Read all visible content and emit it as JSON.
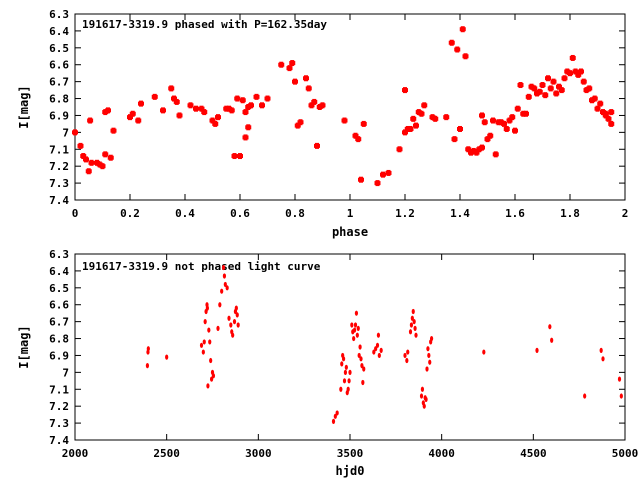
{
  "chart_data": [
    {
      "type": "scatter",
      "title": "191617-3319.9 phased with P=162.35day",
      "xlabel": "phase",
      "ylabel": "I[mag]",
      "xlim": [
        0,
        2
      ],
      "ylim": [
        7.4,
        6.3
      ],
      "x_ticks": [
        0,
        0.2,
        0.4,
        0.6,
        0.8,
        1,
        1.2,
        1.4,
        1.6,
        1.8,
        2
      ],
      "x_tick_labels": [
        "0",
        "0.2",
        "0.4",
        "0.6",
        "0.8",
        "1",
        "1.2",
        "1.4",
        "1.6",
        "1.8",
        "2"
      ],
      "y_ticks": [
        6.3,
        6.4,
        6.5,
        6.6,
        6.7,
        6.8,
        6.9,
        7.0,
        7.1,
        7.2,
        7.3,
        7.4
      ],
      "y_tick_labels": [
        "6.3",
        "6.4",
        "6.5",
        "6.6",
        "6.7",
        "6.8",
        "6.9",
        "7",
        "7.1",
        "7.2",
        "7.3",
        "7.4"
      ],
      "marker_color": "#ff0000",
      "marker": "cross-blob",
      "points": [
        [
          0.0,
          7.0
        ],
        [
          0.02,
          7.08
        ],
        [
          0.03,
          7.14
        ],
        [
          0.04,
          7.16
        ],
        [
          0.05,
          7.23
        ],
        [
          0.055,
          6.93
        ],
        [
          0.06,
          7.18
        ],
        [
          0.08,
          7.18
        ],
        [
          0.09,
          7.19
        ],
        [
          0.1,
          7.2
        ],
        [
          0.11,
          6.88
        ],
        [
          0.12,
          6.87
        ],
        [
          0.11,
          7.13
        ],
        [
          0.13,
          7.15
        ],
        [
          0.14,
          6.99
        ],
        [
          0.2,
          6.91
        ],
        [
          0.21,
          6.89
        ],
        [
          0.23,
          6.93
        ],
        [
          0.24,
          6.83
        ],
        [
          0.29,
          6.79
        ],
        [
          0.32,
          6.87
        ],
        [
          0.35,
          6.74
        ],
        [
          0.36,
          6.8
        ],
        [
          0.37,
          6.82
        ],
        [
          0.38,
          6.9
        ],
        [
          0.42,
          6.84
        ],
        [
          0.44,
          6.86
        ],
        [
          0.46,
          6.86
        ],
        [
          0.47,
          6.88
        ],
        [
          0.5,
          6.93
        ],
        [
          0.51,
          6.95
        ],
        [
          0.52,
          6.91
        ],
        [
          0.55,
          6.86
        ],
        [
          0.56,
          6.86
        ],
        [
          0.57,
          6.87
        ],
        [
          0.58,
          7.14
        ],
        [
          0.59,
          6.8
        ],
        [
          0.6,
          7.14
        ],
        [
          0.61,
          6.81
        ],
        [
          0.62,
          6.88
        ],
        [
          0.63,
          6.85
        ],
        [
          0.64,
          6.84
        ],
        [
          0.62,
          7.03
        ],
        [
          0.63,
          6.97
        ],
        [
          0.66,
          6.79
        ],
        [
          0.68,
          6.84
        ],
        [
          0.7,
          6.8
        ],
        [
          0.75,
          6.6
        ],
        [
          0.78,
          6.62
        ],
        [
          0.79,
          6.59
        ],
        [
          0.8,
          6.7
        ],
        [
          0.81,
          6.96
        ],
        [
          0.82,
          6.94
        ],
        [
          0.84,
          6.68
        ],
        [
          0.85,
          6.74
        ],
        [
          0.86,
          6.84
        ],
        [
          0.87,
          6.82
        ],
        [
          0.88,
          7.08
        ],
        [
          0.89,
          6.85
        ],
        [
          0.9,
          6.84
        ],
        [
          0.98,
          6.93
        ],
        [
          1.02,
          7.02
        ],
        [
          1.03,
          7.04
        ],
        [
          1.04,
          7.28
        ],
        [
          1.05,
          6.95
        ],
        [
          1.1,
          7.3
        ],
        [
          1.12,
          7.25
        ],
        [
          1.14,
          7.24
        ],
        [
          1.18,
          7.1
        ],
        [
          1.2,
          6.75
        ],
        [
          1.2,
          7.0
        ],
        [
          1.21,
          6.98
        ],
        [
          1.22,
          6.98
        ],
        [
          1.23,
          6.92
        ],
        [
          1.24,
          6.96
        ],
        [
          1.25,
          6.88
        ],
        [
          1.26,
          6.89
        ],
        [
          1.27,
          6.84
        ],
        [
          1.3,
          6.91
        ],
        [
          1.31,
          6.92
        ],
        [
          1.35,
          6.91
        ],
        [
          1.37,
          6.47
        ],
        [
          1.38,
          7.04
        ],
        [
          1.39,
          6.51
        ],
        [
          1.4,
          6.98
        ],
        [
          1.41,
          6.39
        ],
        [
          1.42,
          6.55
        ],
        [
          1.43,
          7.1
        ],
        [
          1.44,
          7.12
        ],
        [
          1.45,
          7.11
        ],
        [
          1.46,
          7.12
        ],
        [
          1.47,
          7.1
        ],
        [
          1.48,
          7.09
        ],
        [
          1.48,
          6.9
        ],
        [
          1.49,
          6.94
        ],
        [
          1.5,
          7.04
        ],
        [
          1.51,
          7.02
        ],
        [
          1.52,
          6.93
        ],
        [
          1.53,
          7.13
        ],
        [
          1.54,
          6.94
        ],
        [
          1.55,
          6.94
        ],
        [
          1.56,
          6.95
        ],
        [
          1.57,
          6.98
        ],
        [
          1.58,
          6.93
        ],
        [
          1.59,
          6.91
        ],
        [
          1.6,
          6.99
        ],
        [
          1.61,
          6.86
        ],
        [
          1.62,
          6.72
        ],
        [
          1.63,
          6.89
        ],
        [
          1.64,
          6.89
        ],
        [
          1.65,
          6.79
        ],
        [
          1.66,
          6.73
        ],
        [
          1.67,
          6.74
        ],
        [
          1.68,
          6.77
        ],
        [
          1.69,
          6.76
        ],
        [
          1.7,
          6.72
        ],
        [
          1.71,
          6.78
        ],
        [
          1.72,
          6.68
        ],
        [
          1.73,
          6.74
        ],
        [
          1.74,
          6.7
        ],
        [
          1.75,
          6.77
        ],
        [
          1.76,
          6.73
        ],
        [
          1.77,
          6.75
        ],
        [
          1.78,
          6.68
        ],
        [
          1.79,
          6.64
        ],
        [
          1.8,
          6.65
        ],
        [
          1.81,
          6.56
        ],
        [
          1.82,
          6.64
        ],
        [
          1.83,
          6.66
        ],
        [
          1.84,
          6.64
        ],
        [
          1.85,
          6.7
        ],
        [
          1.86,
          6.75
        ],
        [
          1.87,
          6.74
        ],
        [
          1.88,
          6.81
        ],
        [
          1.89,
          6.8
        ],
        [
          1.9,
          6.86
        ],
        [
          1.91,
          6.83
        ],
        [
          1.92,
          6.88
        ],
        [
          1.93,
          6.9
        ],
        [
          1.94,
          6.92
        ],
        [
          1.95,
          6.95
        ],
        [
          1.95,
          6.88
        ],
        [
          1.93,
          6.89
        ]
      ]
    },
    {
      "type": "scatter",
      "title": "191617-3319.9 not phased light curve",
      "xlabel": "hjd0",
      "ylabel": "I[mag]",
      "xlim": [
        2000,
        5000
      ],
      "ylim": [
        7.4,
        6.3
      ],
      "x_ticks": [
        2000,
        2500,
        3000,
        3500,
        4000,
        4500,
        5000
      ],
      "x_tick_labels": [
        "2000",
        "2500",
        "3000",
        "3500",
        "4000",
        "4500",
        "5000"
      ],
      "y_ticks": [
        6.3,
        6.4,
        6.5,
        6.6,
        6.7,
        6.8,
        6.9,
        7.0,
        7.1,
        7.2,
        7.3,
        7.4
      ],
      "y_tick_labels": [
        "6.3",
        "6.4",
        "6.5",
        "6.6",
        "6.7",
        "6.8",
        "6.9",
        "7",
        "7.1",
        "7.2",
        "7.3",
        "7.4"
      ],
      "marker_color": "#ff0000",
      "marker": "dot",
      "points": [
        [
          2395,
          6.96
        ],
        [
          2398,
          6.88
        ],
        [
          2400,
          6.86
        ],
        [
          2500,
          6.91
        ],
        [
          2690,
          6.84
        ],
        [
          2700,
          6.88
        ],
        [
          2705,
          6.82
        ],
        [
          2710,
          6.7
        ],
        [
          2715,
          6.64
        ],
        [
          2720,
          6.6
        ],
        [
          2722,
          6.62
        ],
        [
          2725,
          7.08
        ],
        [
          2730,
          6.75
        ],
        [
          2735,
          6.82
        ],
        [
          2740,
          6.93
        ],
        [
          2745,
          7.04
        ],
        [
          2750,
          7.0
        ],
        [
          2755,
          7.02
        ],
        [
          2780,
          6.74
        ],
        [
          2790,
          6.6
        ],
        [
          2800,
          6.52
        ],
        [
          2810,
          6.38
        ],
        [
          2815,
          6.43
        ],
        [
          2820,
          6.48
        ],
        [
          2830,
          6.5
        ],
        [
          2840,
          6.68
        ],
        [
          2850,
          6.72
        ],
        [
          2855,
          6.76
        ],
        [
          2860,
          6.78
        ],
        [
          2870,
          6.7
        ],
        [
          2875,
          6.64
        ],
        [
          2880,
          6.62
        ],
        [
          2885,
          6.66
        ],
        [
          2890,
          6.72
        ],
        [
          3410,
          7.29
        ],
        [
          3420,
          7.26
        ],
        [
          3430,
          7.24
        ],
        [
          3450,
          7.1
        ],
        [
          3455,
          6.95
        ],
        [
          3460,
          6.9
        ],
        [
          3465,
          6.92
        ],
        [
          3470,
          7.05
        ],
        [
          3475,
          7.0
        ],
        [
          3480,
          6.97
        ],
        [
          3485,
          7.12
        ],
        [
          3490,
          7.1
        ],
        [
          3495,
          7.05
        ],
        [
          3500,
          7.0
        ],
        [
          3510,
          6.72
        ],
        [
          3515,
          6.76
        ],
        [
          3520,
          6.8
        ],
        [
          3525,
          6.75
        ],
        [
          3530,
          6.72
        ],
        [
          3535,
          6.65
        ],
        [
          3540,
          6.78
        ],
        [
          3545,
          6.74
        ],
        [
          3550,
          6.9
        ],
        [
          3555,
          6.85
        ],
        [
          3560,
          6.92
        ],
        [
          3565,
          6.96
        ],
        [
          3570,
          7.06
        ],
        [
          3575,
          6.98
        ],
        [
          3630,
          6.88
        ],
        [
          3640,
          6.86
        ],
        [
          3650,
          6.84
        ],
        [
          3655,
          6.78
        ],
        [
          3660,
          6.9
        ],
        [
          3670,
          6.87
        ],
        [
          3800,
          6.9
        ],
        [
          3810,
          6.93
        ],
        [
          3815,
          6.88
        ],
        [
          3830,
          6.76
        ],
        [
          3835,
          6.72
        ],
        [
          3840,
          6.68
        ],
        [
          3845,
          6.64
        ],
        [
          3850,
          6.7
        ],
        [
          3855,
          6.74
        ],
        [
          3860,
          6.78
        ],
        [
          3890,
          7.14
        ],
        [
          3895,
          7.1
        ],
        [
          3900,
          7.18
        ],
        [
          3905,
          7.2
        ],
        [
          3910,
          7.15
        ],
        [
          3915,
          7.16
        ],
        [
          3920,
          6.98
        ],
        [
          3925,
          6.86
        ],
        [
          3930,
          6.9
        ],
        [
          3935,
          6.94
        ],
        [
          3940,
          6.82
        ],
        [
          3945,
          6.8
        ],
        [
          4230,
          6.88
        ],
        [
          4520,
          6.87
        ],
        [
          4590,
          6.73
        ],
        [
          4600,
          6.81
        ],
        [
          4780,
          7.14
        ],
        [
          4870,
          6.87
        ],
        [
          4880,
          6.92
        ],
        [
          4970,
          7.04
        ],
        [
          4980,
          7.14
        ]
      ]
    }
  ]
}
